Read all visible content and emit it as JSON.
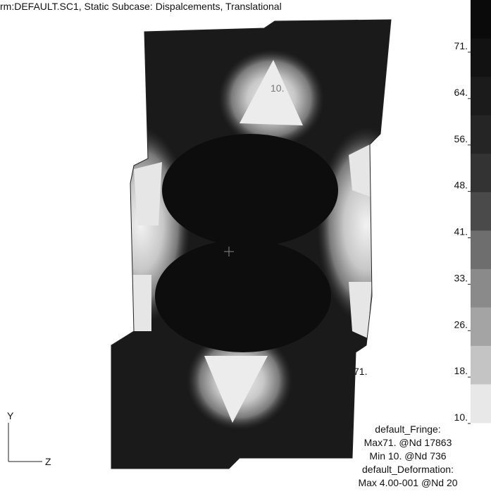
{
  "title": "rm:DEFAULT.SC1, Static Subcase: Dispalcements, Translational",
  "annotations": [
    "10.",
    "71."
  ],
  "axes": {
    "y": "Y",
    "z": "Z"
  },
  "legend": {
    "labels": [
      "71.",
      "64.",
      "56.",
      "48.",
      "41.",
      "33.",
      "26.",
      "18.",
      "10."
    ]
  },
  "info": [
    "default_Fringe:",
    "Max71. @Nd 17863",
    "Min 10. @Nd 736",
    "default_Deformation:",
    "Max 4.00-001 @Nd 20"
  ]
}
